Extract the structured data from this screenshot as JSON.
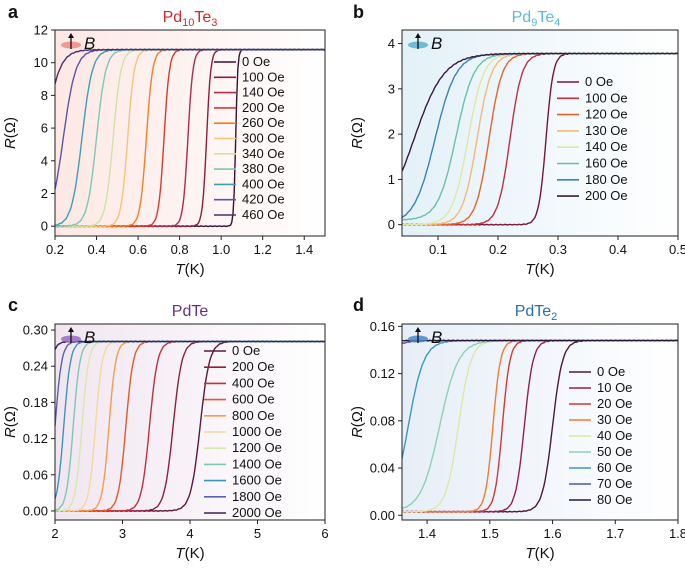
{
  "chart_data": [
    {
      "panel_label": "a",
      "title": "Pd",
      "title_sub1": "10",
      "title_mid": "Te",
      "title_sub2": "3",
      "title_color": "#d6262b",
      "type": "line",
      "x_var": "T",
      "x_unit": "(K)",
      "y_var": "R",
      "y_unit": "(Ω)",
      "xlim": [
        0.2,
        1.5
      ],
      "ylim": [
        -0.6,
        12
      ],
      "xticks": [
        0.2,
        0.4,
        0.6,
        0.8,
        1.0,
        1.2,
        1.4
      ],
      "yticks": [
        0,
        2,
        4,
        6,
        8,
        10,
        12
      ],
      "x_decimals": 1,
      "y_decimals": 0,
      "bg_color": "#fde8e4",
      "field_label": "B",
      "field_icon_color": "#f08a84",
      "r_normal": 10.8,
      "series": [
        {
          "name": "0 Oe",
          "color": "#3a1030",
          "tc": 1.07,
          "width": 0.01,
          "r_low": 0
        },
        {
          "name": "100 Oe",
          "color": "#8c1d40",
          "tc": 0.93,
          "width": 0.02,
          "r_low": 0
        },
        {
          "name": "140 Oe",
          "color": "#b02a4a",
          "tc": 0.84,
          "width": 0.024,
          "r_low": 0
        },
        {
          "name": "200 Oe",
          "color": "#d83b2c",
          "tc": 0.725,
          "width": 0.026,
          "r_low": 0
        },
        {
          "name": "260 Oe",
          "color": "#f07f2a",
          "tc": 0.64,
          "width": 0.03,
          "r_low": 0
        },
        {
          "name": "300 Oe",
          "color": "#f6c37e",
          "tc": 0.55,
          "width": 0.032,
          "r_low": 0
        },
        {
          "name": "340 Oe",
          "color": "#cfe2a6",
          "tc": 0.48,
          "width": 0.038,
          "r_low": 0
        },
        {
          "name": "380 Oe",
          "color": "#7fc7b2",
          "tc": 0.4,
          "width": 0.045,
          "r_low": 0
        },
        {
          "name": "400 Oe",
          "color": "#3f9db6",
          "tc": 0.33,
          "width": 0.05,
          "r_low": 0
        },
        {
          "name": "420 Oe",
          "color": "#5a56a6",
          "tc": 0.24,
          "width": 0.06,
          "r_low": 0
        },
        {
          "name": "460 Oe",
          "color": "#46306e",
          "tc": 0.15,
          "width": 0.07,
          "r_low": 0
        }
      ]
    },
    {
      "panel_label": "b",
      "title": "Pd",
      "title_sub1": "9",
      "title_mid": "Te",
      "title_sub2": "4",
      "title_color": "#5bbad6",
      "type": "line",
      "x_var": "T",
      "x_unit": "(K)",
      "y_var": "R",
      "y_unit": "(Ω)",
      "xlim": [
        0.04,
        0.5
      ],
      "ylim": [
        -0.25,
        4.3
      ],
      "xticks": [
        0.1,
        0.2,
        0.3,
        0.4,
        0.5
      ],
      "yticks": [
        0,
        1,
        2,
        3,
        4
      ],
      "x_decimals": 1,
      "y_decimals": 0,
      "bg_color": "#e3f1f8",
      "field_label": "B",
      "field_icon_color": "#5bb0cf",
      "r_normal": 3.78,
      "series": [
        {
          "name": "0 Oe",
          "color": "#7a1538",
          "tc": 0.28,
          "width": 0.012,
          "r_low": 0
        },
        {
          "name": "100 Oe",
          "color": "#c0303d",
          "tc": 0.22,
          "width": 0.02,
          "r_low": 0
        },
        {
          "name": "120 Oe",
          "color": "#e8622b",
          "tc": 0.185,
          "width": 0.022,
          "r_low": 0
        },
        {
          "name": "130 Oe",
          "color": "#f5b974",
          "tc": 0.165,
          "width": 0.024,
          "r_low": 0
        },
        {
          "name": "140 Oe",
          "color": "#dde8a8",
          "tc": 0.15,
          "width": 0.026,
          "r_low": 0
        },
        {
          "name": "160 Oe",
          "color": "#6cc0a8",
          "tc": 0.13,
          "width": 0.03,
          "r_low": 0.1
        },
        {
          "name": "180 Oe",
          "color": "#3b82b8",
          "tc": 0.095,
          "width": 0.035,
          "r_low": 0
        },
        {
          "name": "200 Oe",
          "color": "#3a1a40",
          "tc": 0.06,
          "width": 0.05,
          "r_low": 0
        }
      ]
    },
    {
      "panel_label": "c",
      "title": "PdTe",
      "title_sub1": "",
      "title_mid": "",
      "title_sub2": "",
      "title_color": "#6b2c8a",
      "type": "line",
      "x_var": "T",
      "x_unit": "(K)",
      "y_var": "R",
      "y_unit": "(Ω)",
      "xlim": [
        2,
        6
      ],
      "ylim": [
        -0.015,
        0.31
      ],
      "xticks": [
        2,
        3,
        4,
        5,
        6
      ],
      "yticks": [
        0.0,
        0.06,
        0.12,
        0.18,
        0.24,
        0.3
      ],
      "x_decimals": 0,
      "y_decimals": 2,
      "bg_color": "#f1e6f0",
      "field_label": "B",
      "field_icon_color": "#9a6cc0",
      "r_normal": 0.281,
      "series": [
        {
          "name": "0 Oe",
          "color": "#5a1a3a",
          "tc": 4.15,
          "width": 0.14,
          "r_low": 0
        },
        {
          "name": "200 Oe",
          "color": "#8f1f3f",
          "tc": 3.75,
          "width": 0.13,
          "r_low": 0
        },
        {
          "name": "400 Oe",
          "color": "#c2303c",
          "tc": 3.4,
          "width": 0.12,
          "r_low": 0
        },
        {
          "name": "600 Oe",
          "color": "#e8572c",
          "tc": 3.05,
          "width": 0.11,
          "r_low": 0
        },
        {
          "name": "800 Oe",
          "color": "#f59c4e",
          "tc": 2.8,
          "width": 0.1,
          "r_low": 0
        },
        {
          "name": "1000 Oe",
          "color": "#f6d7a0",
          "tc": 2.6,
          "width": 0.1,
          "r_low": 0
        },
        {
          "name": "1200 Oe",
          "color": "#d6e7b2",
          "tc": 2.4,
          "width": 0.1,
          "r_low": 0
        },
        {
          "name": "1400 Oe",
          "color": "#7cc8b0",
          "tc": 2.27,
          "width": 0.1,
          "r_low": 0
        },
        {
          "name": "1600 Oe",
          "color": "#3c95b8",
          "tc": 2.13,
          "width": 0.1,
          "r_low": 0
        },
        {
          "name": "1800 Oe",
          "color": "#5862ad",
          "tc": 2.0,
          "width": 0.1,
          "r_low": 0
        },
        {
          "name": "2000 Oe",
          "color": "#3b2456",
          "tc": 1.85,
          "width": 0.1,
          "r_low": 0
        }
      ]
    },
    {
      "panel_label": "d",
      "title": "PdTe",
      "title_sub1": "",
      "title_mid": "",
      "title_sub2": "2",
      "title_color": "#2c6db0",
      "type": "line",
      "x_var": "T",
      "x_unit": "(K)",
      "y_var": "R",
      "y_unit": "(Ω)",
      "xlim": [
        1.36,
        1.8
      ],
      "ylim": [
        -0.004,
        0.162
      ],
      "xticks": [
        1.4,
        1.5,
        1.6,
        1.7,
        1.8
      ],
      "yticks": [
        0.0,
        0.04,
        0.08,
        0.12,
        0.16
      ],
      "x_decimals": 1,
      "y_decimals": 2,
      "bg_color": "#e6eef7",
      "field_label": "B",
      "field_icon_color": "#4a88c8",
      "r_normal": 0.148,
      "series": [
        {
          "name": "0 Oe",
          "color": "#4a1a3a",
          "tc": 1.6,
          "width": 0.016,
          "r_low": 0.003
        },
        {
          "name": "10 Oe",
          "color": "#962047",
          "tc": 1.555,
          "width": 0.014,
          "r_low": 0.003
        },
        {
          "name": "20 Oe",
          "color": "#d2373a",
          "tc": 1.52,
          "width": 0.012,
          "r_low": 0.003
        },
        {
          "name": "30 Oe",
          "color": "#f07a3a",
          "tc": 1.505,
          "width": 0.012,
          "r_low": 0.003
        },
        {
          "name": "40 Oe",
          "color": "#dfe6a8",
          "tc": 1.45,
          "width": 0.02,
          "r_low": 0.003
        },
        {
          "name": "50 Oe",
          "color": "#8fd0b4",
          "tc": 1.42,
          "width": 0.03,
          "r_low": 0.003
        },
        {
          "name": "60 Oe",
          "color": "#3f98b8",
          "tc": 1.37,
          "width": 0.025,
          "r_low": 0.003
        },
        {
          "name": "70 Oe",
          "color": "#5157a6",
          "tc": 1.3,
          "width": 0.03,
          "r_low": 0.003
        },
        {
          "name": "80 Oe",
          "color": "#2a1838",
          "tc": 1.2,
          "width": 0.04,
          "r_low": 0.003
        }
      ]
    }
  ]
}
